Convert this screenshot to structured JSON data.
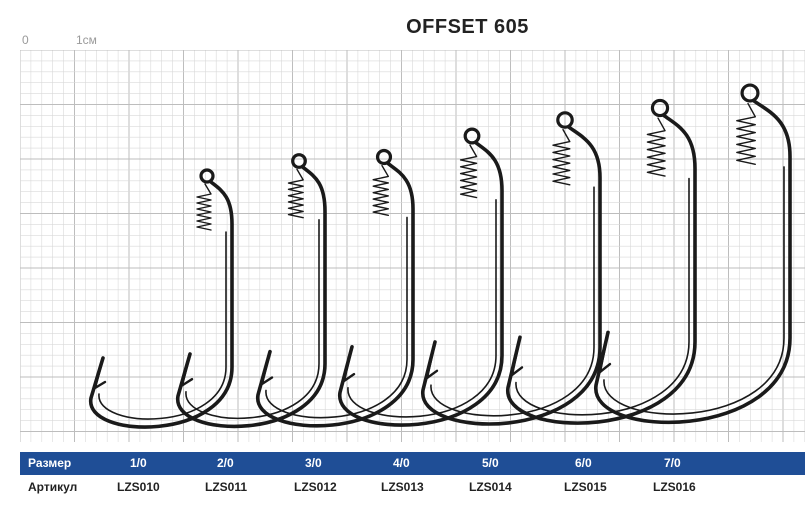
{
  "title": "OFFSET 605",
  "ruler": {
    "zero_label": "0",
    "one_label": "1см"
  },
  "sizes_row": {
    "header": "Размер",
    "values": [
      "1/0",
      "2/0",
      "3/0",
      "4/0",
      "5/0",
      "6/0",
      "7/0"
    ]
  },
  "articles_row": {
    "header": "Артикул",
    "values": [
      "LZS010",
      "LZS011",
      "LZS012",
      "LZS013",
      "LZS014",
      "LZS015",
      "LZS016"
    ]
  },
  "colors": {
    "header_bar": "#1f4e96",
    "grid_line": "#d9d9d9",
    "grid_major": "#bdbdbd",
    "hook_stroke": "#1a1a1a"
  },
  "icons": [
    "offset-hook-icon",
    "spring-coil-icon"
  ]
}
